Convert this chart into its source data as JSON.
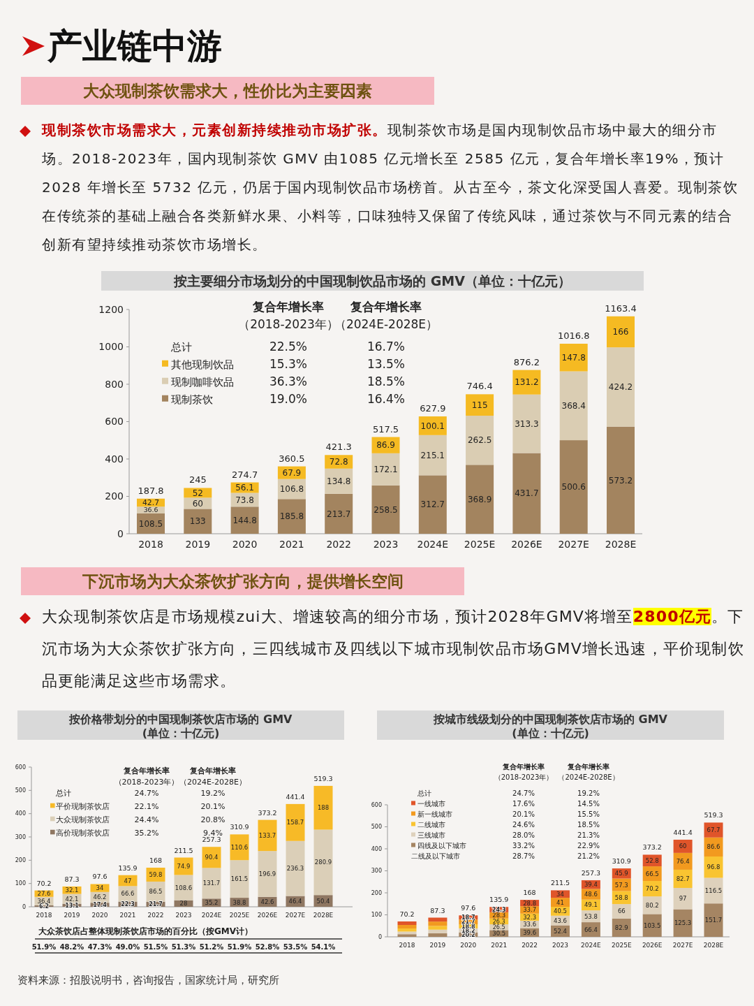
{
  "chart_data": [
    {
      "type": "bar",
      "stacked": true,
      "title": "按主要细分市场划分的中国现制饮品市场的 GMV（单位：十亿元）",
      "categories": [
        "2018",
        "2019",
        "2020",
        "2021",
        "2022",
        "2023",
        "2024E",
        "2025E",
        "2026E",
        "2027E",
        "2028E"
      ],
      "series": [
        {
          "name": "现制茶饮",
          "color": "#a3845f",
          "values": [
            108.5,
            133,
            144.8,
            185.8,
            213.7,
            258.5,
            312.7,
            368.9,
            431.7,
            500.6,
            573.2
          ]
        },
        {
          "name": "现制咖啡饮品",
          "color": "#dacdb3",
          "values": [
            36.6,
            60,
            73.8,
            106.8,
            134.8,
            172.1,
            215.1,
            262.5,
            313.3,
            368.4,
            424.2
          ]
        },
        {
          "name": "其他现制饮品",
          "color": "#f5ba22",
          "values": [
            42.7,
            52,
            56.1,
            67.9,
            72.8,
            86.9,
            100.1,
            115,
            131.2,
            147.8,
            166
          ]
        }
      ],
      "totals": [
        "187.8",
        "245",
        "274.7",
        "360.5",
        "421.3",
        "517.5",
        "627.9",
        "746.4",
        "876.2",
        "1016.8",
        "1163.4"
      ],
      "ylim": [
        0,
        1200
      ],
      "yticks": [
        0,
        200,
        400,
        600,
        800,
        1000,
        1200
      ],
      "data_labels": true,
      "legend": "top left",
      "annotations": [
        "产业链中游",
        "大众现制茶饮需求大，性价比为主要因素",
        "现制茶饮市场需求大，元素创新持续推动市场扩张。",
        "现制茶饮市场是国内现制饮品市场中最大的细分市场。2018-2023年，国内现制茶饮 GMV 由1085 亿元增长至 2585 亿元，复合年增长率19%，预计 2028 年增长至 5732 亿元，仍居于国内现制饮品市场榜首。从古至今，茶文化深受国人喜爱。现制茶饮在传统茶的基础上融合各类新鲜水果、小料等，口味独特又保留了传统风味，通过茶饮与不同元素的结合创新有望持续推动茶饮市场增长。",
        "复合年增长率",
        "（2018-2023年）",
        "复合年增长率",
        "（2024E-2028E）",
        "总计",
        "22.5%",
        "16.7%",
        "15.3%",
        "13.5%",
        "36.3%",
        "18.5%",
        "19.0%",
        "16.4%"
      ]
    },
    {
      "type": "bar",
      "stacked": true,
      "title": "按价格带划分的中国现制茶饮店市场的 GMV",
      "subtitle": "(单位：十亿元)",
      "categories": [
        "2018",
        "2019",
        "2020",
        "2021",
        "2022",
        "2023",
        "2024E",
        "2025E",
        "2026E",
        "2027E",
        "2028E"
      ],
      "series": [
        {
          "name": "高价现制茶饮店",
          "color": "#8f7762",
          "values": [
            6.2,
            13.1,
            17.4,
            22.3,
            21.7,
            28,
            35.2,
            38.8,
            42.6,
            46.4,
            50.4
          ]
        },
        {
          "name": "大众现制茶饮店",
          "color": "#dbcfb8",
          "values": [
            36.4,
            42.1,
            46.2,
            66.6,
            86.5,
            108.6,
            131.7,
            161.5,
            196.9,
            236.3,
            280.9
          ]
        },
        {
          "name": "平价现制茶饮店",
          "color": "#f7ba27",
          "values": [
            27.6,
            32.1,
            34,
            47,
            59.8,
            74.9,
            90.4,
            110.6,
            133.7,
            158.7,
            188
          ]
        }
      ],
      "totals": [
        "70.2",
        "87.3",
        "97.6",
        "135.9",
        "168",
        "211.5",
        "257.3",
        "310.9",
        "373.2",
        "441.4",
        "519.3"
      ],
      "ylim": [
        0,
        600
      ],
      "yticks": [
        0,
        100,
        200,
        300,
        400,
        500,
        600
      ],
      "data_labels": true,
      "legend": "top left",
      "annotations": [
        "下沉市场为大众茶饮扩张方向，提供增长空间",
        "大众现制茶饮店是市场规模zui大、增速较高的细分市场，预计2028年GMV将增至",
        "2800亿元",
        "。下沉市场为大众茶饮扩张方向，三四线城市及四线以下城市现制饮品市场GMV增长迅速，平价现制饮品更能满足这些市场需求。",
        "复合年增长率",
        "（2018-2023年）",
        "复合年增长率",
        "（2024E-2028E）",
        "总计",
        "24.7%",
        "19.2%",
        "22.1%",
        "20.1%",
        "24.4%",
        "20.8%",
        "35.2%",
        "9.4%",
        "大众茶饮店占整体现制茶饮店市场的百分比（按GMV计）",
        "51.9%",
        "48.2%",
        "47.3%",
        "49.0%",
        "51.5%",
        "51.3%",
        "51.2%",
        "51.9%",
        "52.8%",
        "53.5%",
        "54.1%"
      ]
    },
    {
      "type": "bar",
      "stacked": true,
      "title": "按城市线级划分的中国现制茶饮店市场的 GMV",
      "subtitle": "(单位：十亿元)",
      "categories": [
        "2018",
        "2019",
        "2020",
        "2021",
        "2022",
        "2023",
        "2024E",
        "2025E",
        "2026E",
        "2027E",
        "2028E"
      ],
      "series": [
        {
          "name": "四线及以下城市",
          "color": "#a58563",
          "values": [
            12,
            16.6,
            20.2,
            30.5,
            39.6,
            52.4,
            66.4,
            82.9,
            103.5,
            125.3,
            151.7
          ],
          "value_labels": [
            null,
            null,
            "20.2",
            "30.5",
            "39.6",
            "52.4",
            "66.4",
            "82.9",
            "103.5",
            "125.3",
            "151.7"
          ]
        },
        {
          "name": "三线城市",
          "color": "#ded1bc",
          "values": [
            12,
            16,
            18.2,
            26.5,
            33.6,
            43.6,
            53.8,
            66,
            80.2,
            97,
            116.5
          ],
          "value_labels": [
            null,
            null,
            "18.2",
            "26.5",
            "33.6",
            "43.6",
            "53.8",
            "66",
            "80.2",
            "97",
            "116.5"
          ]
        },
        {
          "name": "二线城市",
          "color": "#f9c431",
          "values": [
            14,
            16.9,
            18.8,
            26.3,
            32.3,
            40.5,
            49.1,
            58.8,
            70.2,
            82.7,
            96.8
          ],
          "value_labels": [
            null,
            null,
            "18.8",
            "26.3",
            "32.3",
            "40.5",
            "49.1",
            "58.8",
            "70.2",
            "82.7",
            "96.8"
          ]
        },
        {
          "name": "新一线城市",
          "color": "#f29a1f",
          "values": [
            16,
            19.9,
            21.7,
            28.3,
            33.7,
            41,
            48.6,
            57.3,
            66.5,
            76.4,
            86.6
          ],
          "value_labels": [
            null,
            null,
            "21.7",
            "28.3",
            "33.7",
            "41",
            "48.6",
            "57.3",
            "66.5",
            "76.4",
            "86.6"
          ]
        },
        {
          "name": "一线城市",
          "color": "#e0552a",
          "values": [
            16,
            17.9,
            18.7,
            24.3,
            28.8,
            34,
            39.4,
            45.9,
            52.8,
            60,
            67.7
          ],
          "value_labels": [
            null,
            null,
            "18.7",
            "24.3",
            "28.8",
            "34",
            "39.4",
            "45.9",
            "52.8",
            "60",
            "67.7"
          ]
        }
      ],
      "totals": [
        "70.2",
        "87.3",
        "97.6",
        "135.9",
        "168",
        "211.5",
        "257.3",
        "310.9",
        "373.2",
        "441.4",
        "519.3"
      ],
      "ylim": [
        0,
        600
      ],
      "yticks": [
        0,
        100,
        200,
        300,
        400,
        500,
        600
      ],
      "legend": "top left",
      "annotations": [
        "复合年增长率",
        "（2018-2023年）",
        "复合年增长率",
        "（2024E-2028E）",
        "总计",
        "24.7%",
        "19.2%",
        "17.6%",
        "14.5%",
        "20.1%",
        "15.5%",
        "24.6%",
        "18.5%",
        "28.0%",
        "21.3%",
        "33.2%",
        "22.9%",
        "二线及以下城市",
        "28.7%",
        "21.2%",
        "资料来源：招股说明书，咨询报告，国家统计局，研究所"
      ]
    }
  ]
}
